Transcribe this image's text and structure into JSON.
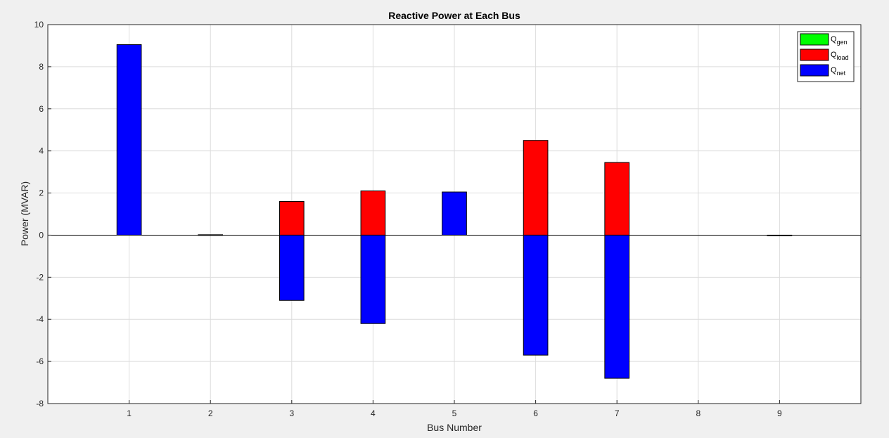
{
  "chart_data": {
    "type": "bar",
    "title": "Reactive Power at Each Bus",
    "xlabel": "Bus Number",
    "ylabel": "Power (MVAR)",
    "categories": [
      "1",
      "2",
      "3",
      "4",
      "5",
      "6",
      "7",
      "8",
      "9"
    ],
    "xlim": [
      0,
      10
    ],
    "ylim": [
      -8,
      10
    ],
    "yticks": [
      -8,
      -6,
      -4,
      -2,
      0,
      2,
      4,
      6,
      8,
      10
    ],
    "grid": true,
    "legend_position": "top-right",
    "series": [
      {
        "name": "Q",
        "subscript": "gen",
        "color": "#00ff00",
        "values": [
          0,
          0,
          0,
          0,
          0,
          0,
          0,
          0,
          0
        ]
      },
      {
        "name": "Q",
        "subscript": "load",
        "color": "#ff0000",
        "values": [
          0,
          0,
          1.6,
          2.1,
          0,
          4.5,
          3.45,
          0,
          0
        ]
      },
      {
        "name": "Q",
        "subscript": "net",
        "color": "#0000ff",
        "values": [
          9.05,
          0.02,
          -3.1,
          -4.2,
          2.05,
          -5.7,
          -6.8,
          0,
          -0.03
        ]
      }
    ]
  }
}
